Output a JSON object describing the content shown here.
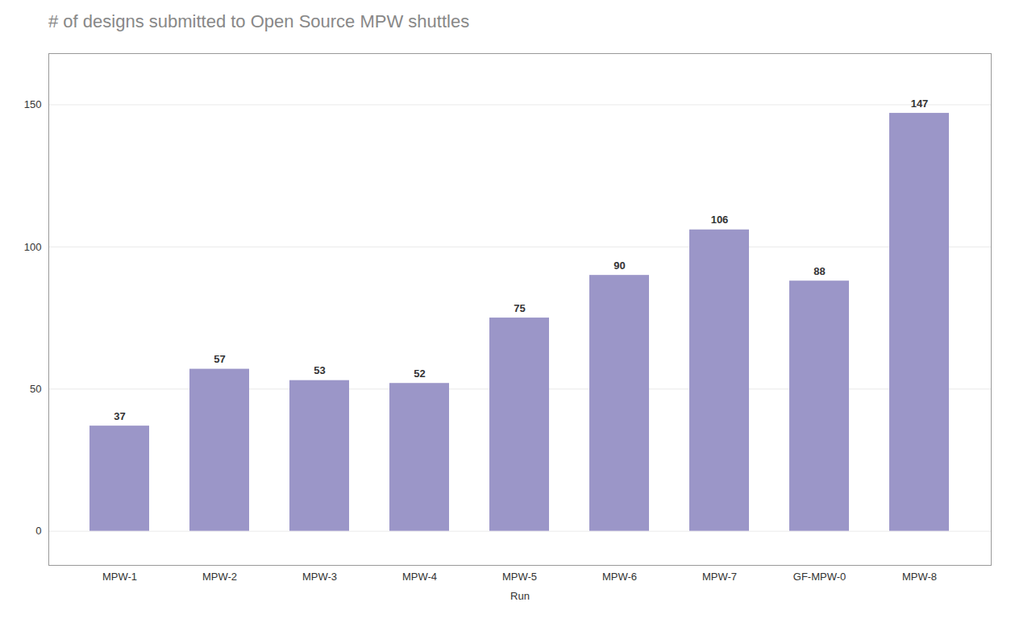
{
  "chart_data": {
    "type": "bar",
    "title": "# of designs submitted to Open Source MPW shuttles",
    "xlabel": "Run",
    "categories": [
      "MPW-1",
      "MPW-2",
      "MPW-3",
      "MPW-4",
      "MPW-5",
      "MPW-6",
      "MPW-7",
      "GF-MPW-0",
      "MPW-8"
    ],
    "values": [
      37,
      57,
      53,
      52,
      75,
      90,
      106,
      88,
      147
    ],
    "color": "#9b96c8",
    "ylim": [
      -12,
      168
    ],
    "yticks": [
      0,
      50,
      100,
      150
    ],
    "grid": true,
    "data_labels": true
  }
}
